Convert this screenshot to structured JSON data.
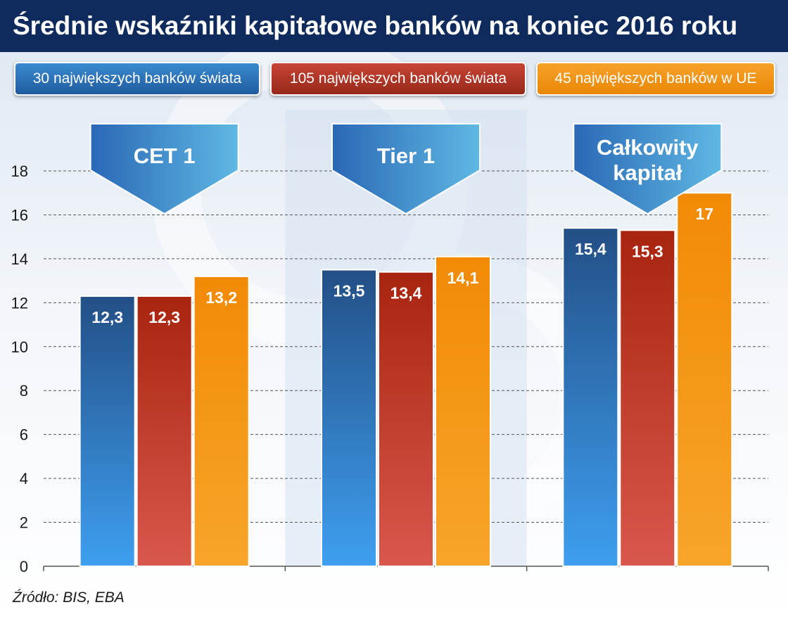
{
  "title": "Średnie wskaźniki kapitałowe banków na koniec 2016 roku",
  "source": "Źródło: BIS, EBA",
  "legend": [
    {
      "label": "30 największych banków świata",
      "color": "#2c6fb5"
    },
    {
      "label": "105 największych banków świata",
      "color": "#b6352a"
    },
    {
      "label": "45 największych banków w UE",
      "color": "#f3930d"
    }
  ],
  "chart_data": {
    "type": "bar",
    "title": "Średnie wskaźniki kapitałowe banków na koniec 2016 roku",
    "categories": [
      "CET 1",
      "Tier 1",
      "Całkowity kapitał"
    ],
    "series": [
      {
        "name": "30 największych banków świata",
        "values": [
          12.3,
          13.5,
          15.4
        ],
        "labels": [
          "12,3",
          "13,5",
          "15,4"
        ]
      },
      {
        "name": "105 największych banków świata",
        "values": [
          12.3,
          13.4,
          15.3
        ],
        "labels": [
          "12,3",
          "13,4",
          "15,3"
        ]
      },
      {
        "name": "45 największych banków w UE",
        "values": [
          13.2,
          14.1,
          17
        ],
        "labels": [
          "13,2",
          "14,1",
          "17"
        ]
      }
    ],
    "ylim": [
      0,
      18
    ],
    "yticks": [
      "0",
      "2",
      "4",
      "6",
      "8",
      "10",
      "12",
      "14",
      "16",
      "18"
    ],
    "grid": true,
    "legend_position": "top"
  }
}
